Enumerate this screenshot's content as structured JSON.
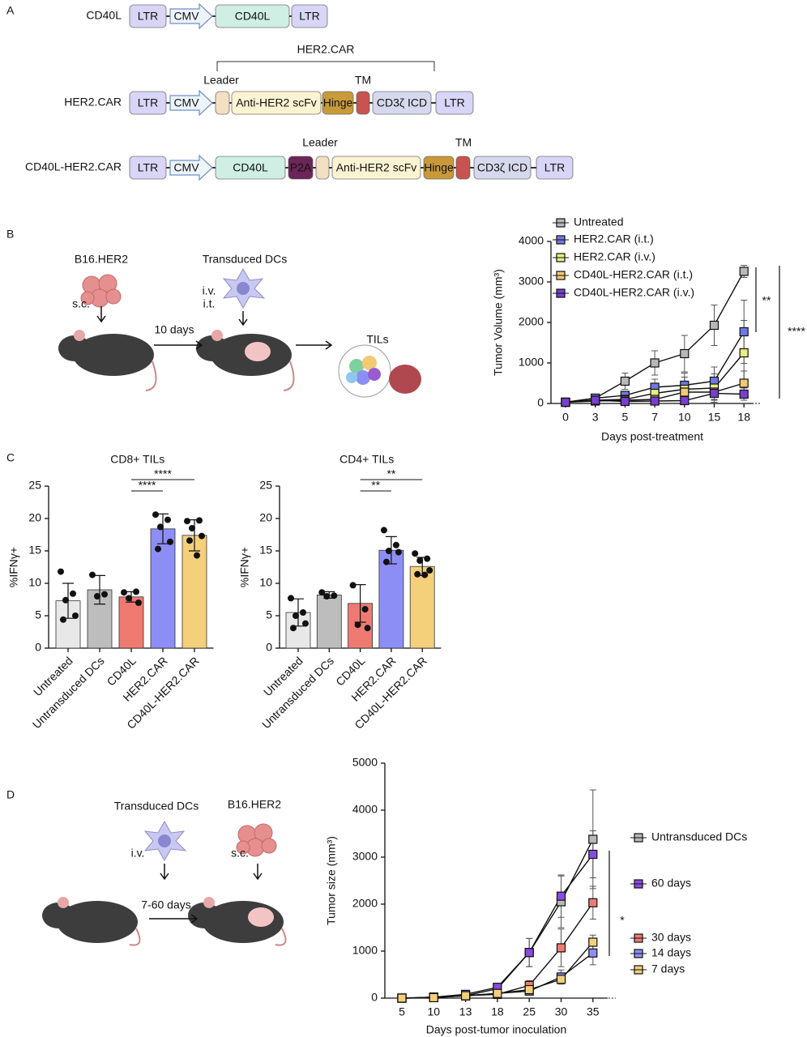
{
  "panel_labels": [
    "A",
    "B",
    "C",
    "D"
  ],
  "constructs": [
    {
      "name": "CD40L",
      "elements": [
        {
          "label": "LTR",
          "color": "#d9d5f6"
        },
        {
          "label": "CMV",
          "color": "#eef4fb",
          "shape": "arrow"
        },
        {
          "label": "CD40L",
          "color": "#cfeee4"
        },
        {
          "label": "LTR",
          "color": "#d9d5f6"
        }
      ]
    },
    {
      "name": "HER2.CAR",
      "bracket": "HER2.CAR",
      "annotations": [
        "Leader",
        "TM"
      ],
      "elements": [
        {
          "label": "LTR",
          "color": "#d9d5f6"
        },
        {
          "label": "CMV",
          "color": "#eef4fb",
          "shape": "arrow"
        },
        {
          "color": "#f3dfc2"
        },
        {
          "label": "Anti-HER2 scFv",
          "color": "#fbf3d2"
        },
        {
          "label": "Hinge",
          "color": "#c99a3a"
        },
        {
          "color": "#c9534f"
        },
        {
          "label": "CD3ζ ICD",
          "color": "#d6d9ee"
        },
        {
          "label": "LTR",
          "color": "#d9d5f6"
        }
      ]
    },
    {
      "name": "CD40L-HER2.CAR",
      "annotations": [
        "Leader",
        "TM"
      ],
      "elements": [
        {
          "label": "LTR",
          "color": "#d9d5f6"
        },
        {
          "label": "CMV",
          "color": "#eef4fb",
          "shape": "arrow"
        },
        {
          "label": "CD40L",
          "color": "#cfeee4"
        },
        {
          "label": "P2A",
          "color": "#6b2557"
        },
        {
          "color": "#f3dfc2"
        },
        {
          "label": "Anti-HER2 scFv",
          "color": "#fbf3d2"
        },
        {
          "label": "Hinge",
          "color": "#c99a3a"
        },
        {
          "color": "#c9534f"
        },
        {
          "label": "CD3ζ ICD",
          "color": "#d6d9ee"
        },
        {
          "label": "LTR",
          "color": "#d9d5f6"
        }
      ]
    }
  ],
  "schematic_b": {
    "tumor": "B16.HER2",
    "cells": "Transduced DCs",
    "route_tumor": "s.c.",
    "route_cells": [
      "i.v.",
      "i.t."
    ],
    "interval": "10 days",
    "readout": "TILs"
  },
  "schematic_d": {
    "cells": "Transduced DCs",
    "tumor": "B16.HER2",
    "route_cells": "i.v.",
    "route_tumor": "s.c.",
    "interval": "7-60 days"
  },
  "chart_data": [
    {
      "type": "line",
      "ylabel": "Tumor Volume (mm³)",
      "xlabel": "Days post-treatment",
      "categories": [
        "0",
        "3",
        "5",
        "7",
        "10",
        "15",
        "18"
      ],
      "ylim": [
        0,
        4000
      ],
      "yticks": [
        0,
        1000,
        2000,
        3000,
        4000
      ],
      "legend": "top-left",
      "series": [
        {
          "name": "Untreated",
          "color": "#b8b8b8",
          "values": [
            30,
            130,
            550,
            1000,
            1230,
            1930,
            3260
          ],
          "errors": [
            20,
            50,
            200,
            300,
            450,
            500,
            150
          ]
        },
        {
          "name": "HER2.CAR (i.t.)",
          "color": "#6f78e8",
          "values": [
            30,
            130,
            200,
            400,
            450,
            550,
            1770
          ],
          "errors": [
            20,
            50,
            100,
            200,
            300,
            350,
            780
          ]
        },
        {
          "name": "HER2.CAR (i.v.)",
          "color": "#e6ee82",
          "values": [
            30,
            80,
            100,
            250,
            350,
            380,
            1250
          ],
          "errors": [
            20,
            40,
            80,
            150,
            300,
            350,
            800
          ]
        },
        {
          "name": "CD40L-HER2.CAR (i.t.)",
          "color": "#f5c872",
          "values": [
            30,
            60,
            80,
            100,
            280,
            280,
            500
          ],
          "errors": [
            20,
            30,
            60,
            100,
            150,
            200,
            300
          ]
        },
        {
          "name": "CD40L-HER2.CAR (i.v.)",
          "color": "#7a3fd0",
          "values": [
            30,
            80,
            50,
            60,
            70,
            250,
            230
          ],
          "errors": [
            20,
            30,
            40,
            50,
            60,
            150,
            150
          ]
        }
      ],
      "significance": [
        {
          "text": "**"
        },
        {
          "text": "****"
        }
      ]
    },
    {
      "type": "bar",
      "title": "CD8+ TILs",
      "ylabel": "%IFNγ+",
      "categories": [
        "Untreated",
        "Untransduced DCs",
        "CD40L",
        "HER2.CAR",
        "CD40L-HER2.CAR"
      ],
      "colors": [
        "#e8e8e8",
        "#bdbdbd",
        "#ef7a72",
        "#8d8ef5",
        "#f5d07a"
      ],
      "values": [
        7.3,
        9.0,
        7.9,
        18.4,
        17.4
      ],
      "errors": [
        2.7,
        2.2,
        0.8,
        2.3,
        2.4
      ],
      "points": [
        [
          11.8,
          8.4,
          7.4,
          5.0,
          4.4
        ],
        [
          11.3,
          8.3,
          8.0
        ],
        [
          8.6,
          8.7,
          7.7,
          7.0
        ],
        [
          20.6,
          19.8,
          18.7,
          16.4,
          15.3
        ],
        [
          19.6,
          19.7,
          18.5,
          17.3,
          16.6,
          14.3
        ]
      ],
      "ylim": [
        0,
        25
      ],
      "yticks": [
        0,
        5,
        10,
        15,
        20,
        25
      ],
      "significance": [
        {
          "text": "****",
          "between": [
            "CD40L",
            "HER2.CAR"
          ]
        },
        {
          "text": "****",
          "between": [
            "CD40L",
            "CD40L-HER2.CAR"
          ]
        }
      ]
    },
    {
      "type": "bar",
      "title": "CD4+ TILs",
      "ylabel": "%IFNγ+",
      "categories": [
        "Untreated",
        "Untransduced DCs",
        "CD40L",
        "HER2.CAR",
        "CD40L-HER2.CAR"
      ],
      "colors": [
        "#e8e8e8",
        "#bdbdbd",
        "#ef7a72",
        "#8d8ef5",
        "#f5d07a"
      ],
      "values": [
        5.5,
        8.2,
        6.9,
        15.1,
        12.6
      ],
      "errors": [
        2.1,
        0.5,
        2.9,
        2.1,
        1.4
      ],
      "points": [
        [
          7.7,
          5.5,
          5.0,
          3.8,
          3.1
        ],
        [
          8.6,
          8.1,
          8.0
        ],
        [
          9.7,
          6.0,
          3.6,
          3.1
        ],
        [
          18.2,
          15.9,
          15.0,
          14.8,
          13.3
        ],
        [
          14.6,
          13.8,
          13.5,
          12.0,
          11.4,
          11.3
        ]
      ],
      "ylim": [
        0,
        25
      ],
      "yticks": [
        0,
        5,
        10,
        15,
        20,
        25
      ],
      "significance": [
        {
          "text": "**",
          "between": [
            "CD40L",
            "HER2.CAR"
          ]
        },
        {
          "text": "**",
          "between": [
            "CD40L",
            "CD40L-HER2.CAR"
          ]
        }
      ]
    },
    {
      "type": "line",
      "ylabel": "Tumor size (mm³)",
      "xlabel": "Days post-tumor inoculation",
      "categories": [
        "5",
        "10",
        "13",
        "18",
        "25",
        "30",
        "35"
      ],
      "ylim": [
        0,
        5000
      ],
      "yticks": [
        0,
        1000,
        2000,
        3000,
        4000,
        5000
      ],
      "legend": "right",
      "series": [
        {
          "name": "Untransduced DCs",
          "color": "#b8b8b8",
          "values": [
            0,
            20,
            50,
            200,
            970,
            2050,
            3380
          ],
          "errors": [
            10,
            20,
            40,
            80,
            300,
            550,
            1050
          ]
        },
        {
          "name": "60 days",
          "color": "#8a4be0",
          "values": [
            0,
            20,
            80,
            230,
            970,
            2170,
            3060
          ],
          "errors": [
            10,
            20,
            40,
            80,
            300,
            450,
            500
          ]
        },
        {
          "name": "30 days",
          "color": "#ef7a72",
          "values": [
            0,
            20,
            50,
            80,
            270,
            1070,
            2030
          ],
          "errors": [
            10,
            20,
            30,
            50,
            100,
            400,
            350
          ]
        },
        {
          "name": "14 days",
          "color": "#8d8ef5",
          "values": [
            0,
            10,
            50,
            100,
            150,
            450,
            960
          ],
          "errors": [
            10,
            10,
            30,
            50,
            60,
            150,
            250
          ]
        },
        {
          "name": "7 days",
          "color": "#f5d07a",
          "values": [
            0,
            10,
            50,
            100,
            180,
            400,
            1190
          ],
          "errors": [
            10,
            10,
            30,
            50,
            60,
            100,
            150
          ]
        }
      ],
      "significance": [
        {
          "text": "*"
        }
      ]
    }
  ]
}
